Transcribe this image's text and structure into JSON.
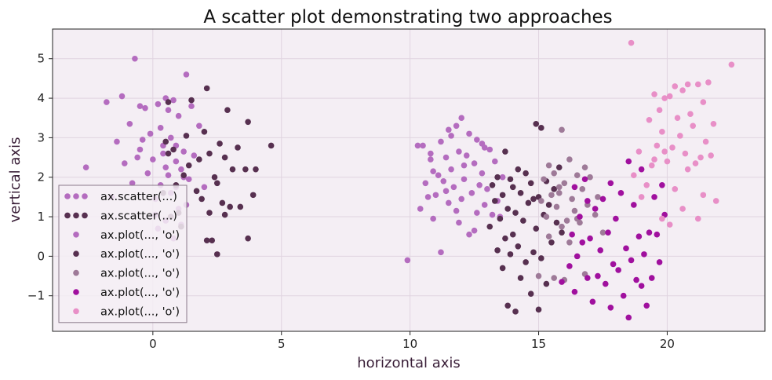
{
  "chart_data": {
    "type": "scatter",
    "title": "A scatter plot demonstrating two approaches",
    "xlabel": "horizontal axis",
    "ylabel": "vertical axis",
    "xlim": [
      -3.9,
      23.8
    ],
    "ylim": [
      -1.9,
      5.75
    ],
    "xticks": [
      0,
      5,
      10,
      15,
      20
    ],
    "yticks": [
      -1,
      0,
      1,
      2,
      3,
      4,
      5
    ],
    "grid": true,
    "legend_position": "lower-left",
    "series": [
      {
        "name": "ax.scatter(...)",
        "method": "scatter",
        "color": "#b46cbf",
        "x": [
          -0.7,
          0.5,
          1.3,
          -1.2,
          -0.5,
          0.2,
          0.8,
          1.5,
          -1.8,
          -0.3,
          0.6,
          1.0,
          -0.9,
          0.3,
          1.8,
          -0.1,
          0.7,
          -1.4,
          0.9,
          1.2,
          -2.6,
          -0.5,
          0.4,
          1.6,
          0.0,
          0.9,
          -1.1,
          0.5,
          1.1,
          -0.2,
          0.6,
          1.4,
          -0.8,
          0.3,
          0.9,
          -1.6,
          0.1,
          1.0,
          0.5,
          0.2,
          0.8,
          -0.4,
          1.2,
          2.0,
          0.4,
          -0.6,
          0.7,
          1.3,
          0.1,
          1.1
        ],
        "y": [
          5.0,
          4.0,
          4.6,
          4.05,
          3.8,
          3.85,
          3.95,
          3.8,
          3.9,
          3.75,
          3.7,
          3.55,
          3.35,
          3.25,
          3.3,
          3.1,
          3.0,
          2.9,
          2.8,
          2.65,
          2.25,
          2.7,
          2.6,
          2.55,
          2.45,
          2.4,
          2.35,
          2.25,
          2.2,
          2.1,
          2.05,
          1.95,
          1.85,
          1.8,
          1.75,
          1.5,
          1.45,
          1.2,
          0.9,
          0.7,
          0.45,
          2.95,
          2.0,
          1.75,
          2.8,
          2.5,
          1.6,
          1.3,
          1.05,
          0.8
        ]
      },
      {
        "name": "ax.scatter(...)",
        "method": "scatter",
        "color": "#573050",
        "x": [
          2.1,
          0.6,
          1.5,
          2.9,
          3.7,
          4.6,
          2.0,
          2.6,
          1.3,
          0.8,
          3.3,
          2.2,
          1.8,
          0.5,
          2.8,
          3.6,
          4.0,
          1.4,
          2.4,
          0.9,
          3.1,
          1.2,
          2.5,
          3.9,
          0.4,
          1.7,
          2.7,
          3.0,
          1.0,
          2.2,
          3.4,
          0.7,
          1.9,
          2.3,
          3.7,
          2.1,
          2.5,
          1.1,
          2.8,
          0.6
        ],
        "y": [
          4.25,
          3.9,
          3.95,
          3.7,
          3.4,
          2.8,
          3.15,
          2.85,
          3.05,
          2.7,
          2.75,
          2.6,
          2.45,
          2.9,
          2.5,
          2.2,
          2.2,
          2.3,
          2.0,
          1.8,
          2.2,
          2.05,
          1.85,
          1.55,
          1.6,
          1.65,
          1.35,
          1.25,
          1.1,
          1.1,
          1.25,
          1.0,
          1.45,
          0.4,
          0.45,
          0.4,
          0.05,
          0.75,
          1.05,
          2.6
        ]
      },
      {
        "name": "ax.plot(..., 'o')",
        "method": "plot",
        "color": "#b46cbf",
        "x": [
          12.0,
          11.8,
          12.3,
          11.5,
          12.6,
          11.2,
          10.5,
          10.3,
          12.9,
          13.1,
          11.9,
          12.2,
          11.4,
          10.8,
          13.3,
          12.5,
          11.6,
          10.9,
          12.8,
          11.1,
          13.6,
          12.1,
          11.3,
          10.6,
          12.7,
          11.7,
          13.0,
          12.4,
          11.0,
          10.7,
          12.0,
          13.4,
          11.5,
          12.9,
          10.4,
          11.8,
          12.6,
          13.2,
          9.9,
          11.2,
          12.3,
          10.9,
          11.9,
          12.5,
          13.5,
          11.4,
          12.1,
          10.8,
          12.8,
          11.6
        ],
        "y": [
          3.5,
          3.3,
          3.1,
          3.2,
          2.95,
          2.9,
          2.8,
          2.8,
          2.75,
          2.7,
          2.65,
          2.55,
          2.5,
          2.45,
          2.4,
          2.35,
          2.2,
          2.15,
          2.1,
          2.05,
          2.0,
          1.95,
          1.9,
          1.85,
          1.8,
          1.75,
          1.7,
          1.6,
          1.55,
          1.5,
          1.45,
          1.4,
          1.35,
          1.3,
          1.2,
          1.15,
          1.1,
          1.05,
          -0.1,
          0.1,
          0.55,
          0.95,
          0.85,
          0.65,
          1.0,
          1.65,
          2.3,
          2.6,
          2.85,
          3.05
        ]
      },
      {
        "name": "ax.plot(..., 'o')",
        "method": "plot",
        "color": "#573050",
        "x": [
          14.9,
          15.1,
          13.7,
          14.2,
          15.8,
          14.5,
          13.4,
          13.9,
          15.3,
          14.7,
          13.2,
          14.0,
          15.6,
          14.3,
          13.6,
          15.0,
          14.8,
          13.3,
          14.6,
          15.4,
          13.8,
          14.1,
          15.2,
          13.5,
          14.4,
          15.7,
          13.1,
          14.9,
          15.9,
          14.0,
          13.7,
          15.5,
          14.2,
          13.4,
          14.8,
          13.9,
          15.1,
          14.5,
          13.6,
          14.3,
          15.3,
          14.7,
          13.8,
          15.0,
          14.1
        ],
        "y": [
          3.35,
          3.25,
          2.65,
          2.2,
          2.25,
          2.1,
          2.0,
          1.95,
          1.9,
          1.85,
          1.8,
          1.75,
          1.7,
          1.6,
          1.55,
          1.5,
          1.45,
          1.4,
          1.35,
          1.3,
          1.2,
          1.1,
          1.05,
          0.95,
          0.9,
          0.85,
          0.75,
          0.7,
          0.6,
          0.55,
          0.45,
          0.35,
          0.25,
          0.15,
          0.1,
          0.05,
          -0.05,
          -0.15,
          -0.3,
          -0.55,
          -0.7,
          -0.95,
          -1.25,
          -1.35,
          -1.4
        ]
      },
      {
        "name": "ax.plot(..., 'o')",
        "method": "plot",
        "color": "#9e7a98",
        "x": [
          15.9,
          16.2,
          15.4,
          16.8,
          15.6,
          16.5,
          17.0,
          15.2,
          16.0,
          15.8,
          16.7,
          15.5,
          17.3,
          16.3,
          15.1,
          16.9,
          15.7,
          16.4,
          17.2,
          15.3,
          16.1,
          16.6,
          15.9,
          17.5,
          15.4,
          16.2,
          15.0,
          16.8,
          15.6,
          16.0,
          16.5,
          15.8
        ],
        "y": [
          3.2,
          2.45,
          2.3,
          2.25,
          2.1,
          2.05,
          2.0,
          1.95,
          1.85,
          1.75,
          1.7,
          1.55,
          1.5,
          1.45,
          1.4,
          1.3,
          1.25,
          1.15,
          1.05,
          1.0,
          0.9,
          0.85,
          0.75,
          0.6,
          0.5,
          0.35,
          -0.5,
          -0.45,
          -0.55,
          -0.6,
          0.95,
          1.6
        ]
      },
      {
        "name": "ax.plot(..., 'o')",
        "method": "plot",
        "color": "#a0109e",
        "x": [
          19.0,
          18.5,
          16.8,
          17.8,
          19.8,
          16.4,
          18.2,
          17.5,
          19.5,
          16.9,
          18.7,
          17.2,
          19.9,
          16.6,
          18.0,
          17.7,
          19.3,
          16.3,
          18.9,
          17.0,
          19.6,
          16.7,
          18.4,
          17.4,
          19.1,
          16.5,
          18.6,
          17.9,
          19.7,
          16.2,
          18.1,
          17.3,
          19.4,
          16.9,
          18.8,
          17.6,
          19.0,
          16.4,
          18.3,
          17.1,
          19.2,
          15.9,
          18.5,
          17.8
        ],
        "y": [
          2.2,
          2.4,
          1.95,
          1.85,
          1.8,
          1.75,
          1.6,
          1.45,
          1.5,
          1.4,
          1.3,
          1.2,
          1.05,
          1.0,
          0.95,
          0.6,
          0.6,
          0.55,
          0.5,
          0.45,
          0.55,
          0.35,
          0.2,
          0.15,
          0.05,
          0.0,
          -0.1,
          -0.2,
          -0.15,
          -0.25,
          -0.35,
          -0.5,
          -0.55,
          -0.55,
          -0.6,
          -0.7,
          -0.75,
          -0.9,
          -1.0,
          -1.15,
          -1.25,
          -0.65,
          -1.55,
          -1.3
        ]
      },
      {
        "name": "ax.plot(..., 'o')",
        "method": "plot",
        "color": "#e88fc7",
        "x": [
          18.6,
          22.5,
          20.8,
          21.6,
          20.3,
          21.2,
          19.5,
          20.6,
          19.9,
          21.4,
          20.1,
          19.7,
          20.9,
          21.8,
          19.3,
          20.4,
          21.0,
          19.8,
          20.5,
          21.5,
          19.6,
          20.2,
          21.7,
          19.9,
          20.7,
          21.3,
          18.9,
          20.0,
          21.1,
          19.4,
          20.8,
          18.7,
          21.9,
          20.3,
          19.2,
          21.4,
          19.0,
          20.6,
          19.8,
          20.1,
          21.2,
          19.5
        ],
        "y": [
          5.4,
          4.85,
          4.35,
          4.4,
          4.3,
          4.35,
          4.1,
          4.2,
          4.0,
          3.9,
          4.05,
          3.7,
          3.6,
          3.35,
          3.45,
          3.5,
          3.3,
          3.15,
          3.05,
          2.9,
          2.8,
          2.75,
          2.55,
          2.65,
          2.6,
          2.5,
          2.65,
          2.4,
          2.35,
          2.3,
          2.2,
          2.05,
          1.4,
          1.7,
          1.8,
          1.55,
          1.5,
          1.2,
          0.95,
          0.8,
          0.95,
          2.45
        ]
      }
    ]
  }
}
